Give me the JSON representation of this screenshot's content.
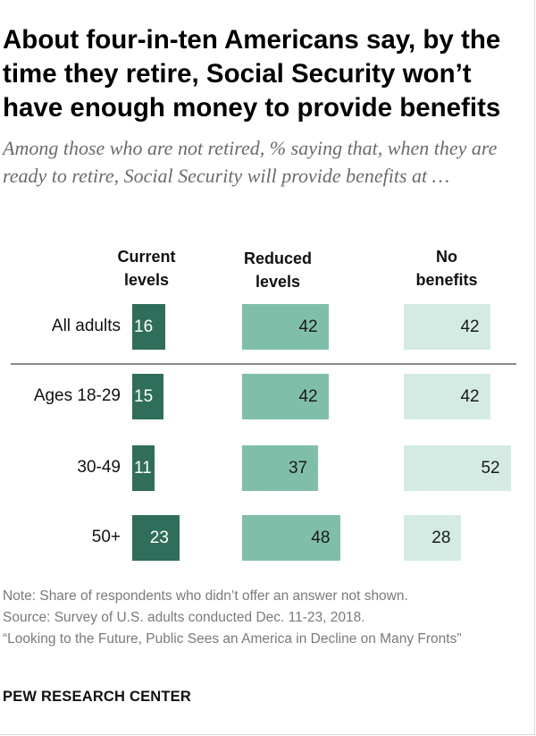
{
  "title": "About four-in-ten Americans say, by the time they retire, Social Security won’t have enough money to provide benefits",
  "subtitle": "Among those who are not retired, % saying that, when they are ready to retire, Social Security will provide benefits at …",
  "chart_data": {
    "type": "bar",
    "categories": [
      "All adults",
      "Ages 18-29",
      "30-49",
      "50+"
    ],
    "series": [
      {
        "name": "Current levels",
        "values": [
          16,
          15,
          11,
          23
        ],
        "color": "#2f6e5a"
      },
      {
        "name": "Reduced levels",
        "values": [
          42,
          42,
          37,
          48
        ],
        "color": "#7fbfaa"
      },
      {
        "name": "No benefits",
        "values": [
          42,
          42,
          52,
          28
        ],
        "color": "#d3ebe3"
      }
    ]
  },
  "footer": {
    "note": "Note: Share of respondents who didn’t offer an answer not shown.",
    "source": "Source: Survey of U.S. adults conducted Dec. 11-23, 2018.",
    "report": "“Looking to the Future, Public Sees an America in Decline on Many Fronts”"
  },
  "brand": "PEW RESEARCH CENTER"
}
